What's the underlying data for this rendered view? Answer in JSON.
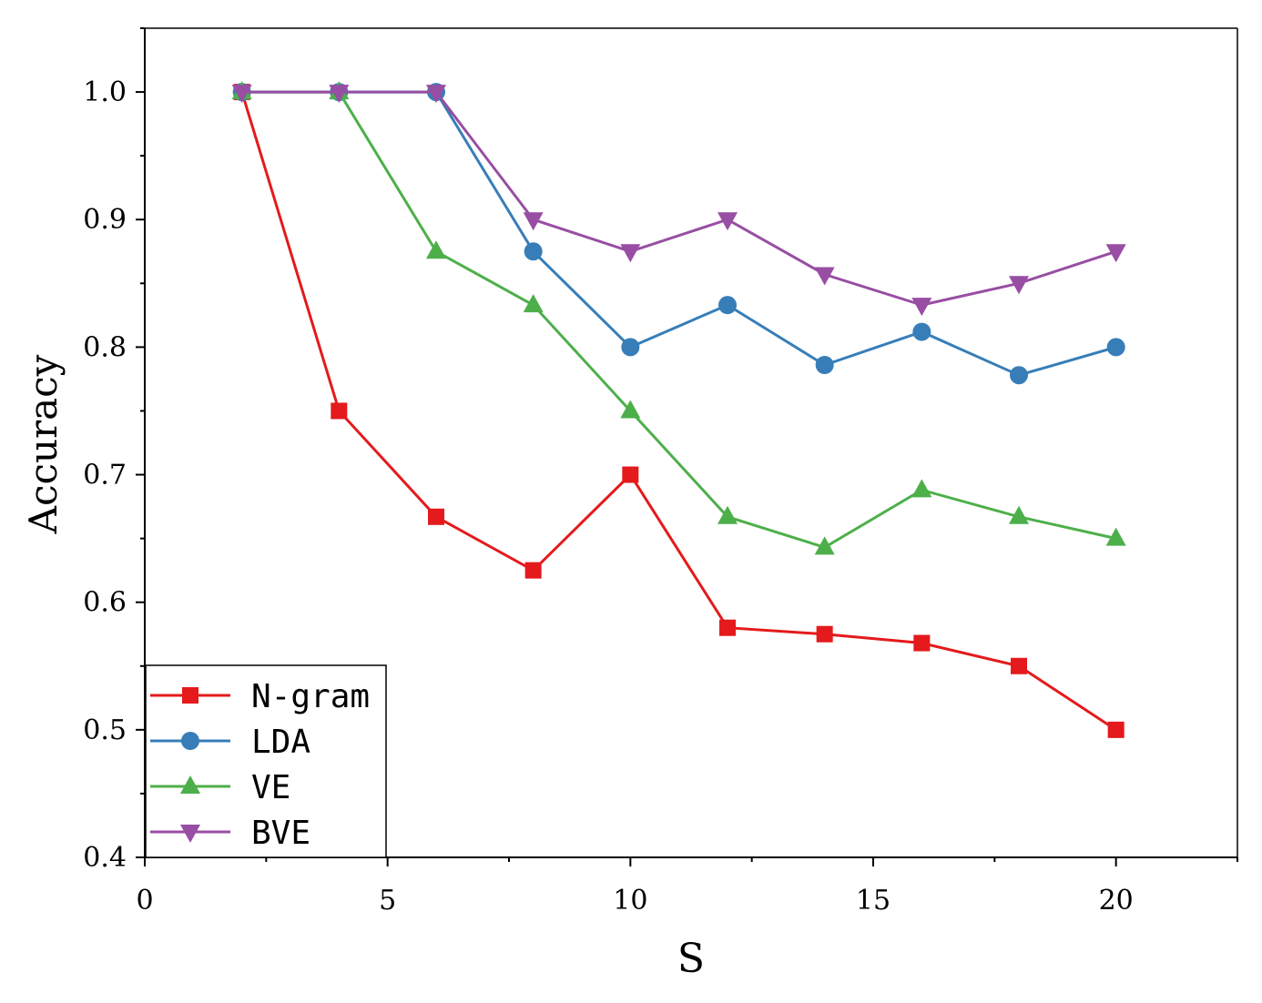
{
  "chart_data": {
    "type": "line",
    "title": "",
    "xlabel": "S",
    "ylabel": "Accuracy",
    "xlim": [
      0,
      22.5
    ],
    "ylim": [
      0.4,
      1.05
    ],
    "xticks": [
      0,
      5,
      10,
      15,
      20
    ],
    "yticks": [
      0.4,
      0.5,
      0.6,
      0.7,
      0.8,
      0.9,
      1.0
    ],
    "xtick_labels": [
      "0",
      "5",
      "10",
      "15",
      "20"
    ],
    "ytick_labels": [
      "0.4",
      "0.5",
      "0.6",
      "0.7",
      "0.8",
      "0.9",
      "1.0"
    ],
    "grid": false,
    "legend_position": "bottom-left",
    "x": [
      2,
      4,
      6,
      8,
      10,
      12,
      14,
      16,
      18,
      20
    ],
    "series": [
      {
        "name": "N-gram",
        "color": "#e41a1c",
        "marker": "square",
        "values": [
          1.0,
          0.75,
          0.667,
          0.625,
          0.7,
          0.58,
          0.575,
          0.568,
          0.55,
          0.5
        ]
      },
      {
        "name": "LDA",
        "color": "#377eb8",
        "marker": "circle",
        "values": [
          1.0,
          1.0,
          1.0,
          0.875,
          0.8,
          0.833,
          0.786,
          0.812,
          0.778,
          0.8
        ]
      },
      {
        "name": "VE",
        "color": "#4daf4a",
        "marker": "triangle-up",
        "values": [
          1.0,
          1.0,
          0.875,
          0.833,
          0.75,
          0.667,
          0.643,
          0.688,
          0.667,
          0.65
        ]
      },
      {
        "name": "BVE",
        "color": "#984ea3",
        "marker": "triangle-down",
        "values": [
          1.0,
          1.0,
          1.0,
          0.9,
          0.875,
          0.9,
          0.857,
          0.833,
          0.85,
          0.875
        ]
      }
    ]
  }
}
